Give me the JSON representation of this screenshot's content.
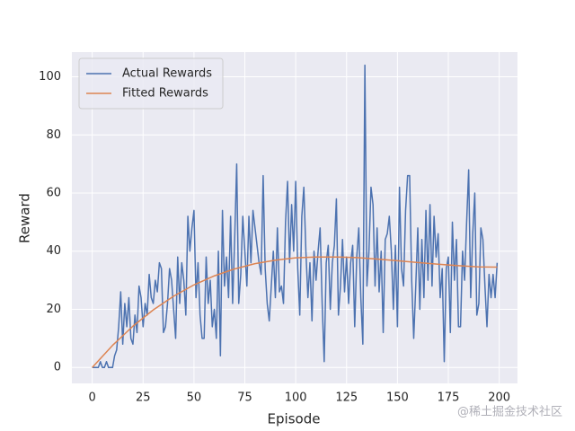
{
  "chart_data": {
    "type": "line",
    "xlabel": "Episode",
    "ylabel": "Reward",
    "xlim": [
      -10,
      209
    ],
    "ylim": [
      -5.5,
      108.5
    ],
    "xticks": [
      0,
      25,
      50,
      75,
      100,
      125,
      150,
      175,
      200
    ],
    "yticks": [
      0,
      20,
      40,
      60,
      80,
      100
    ],
    "grid": true,
    "legend": "upper left",
    "series": [
      {
        "name": "Actual Rewards",
        "color": "#4c72b0",
        "x": [
          0,
          1,
          2,
          3,
          4,
          5,
          6,
          7,
          8,
          9,
          10,
          11,
          12,
          13,
          14,
          15,
          16,
          17,
          18,
          19,
          20,
          21,
          22,
          23,
          24,
          25,
          26,
          27,
          28,
          29,
          30,
          31,
          32,
          33,
          34,
          35,
          36,
          37,
          38,
          39,
          40,
          41,
          42,
          43,
          44,
          45,
          46,
          47,
          48,
          49,
          50,
          51,
          52,
          53,
          54,
          55,
          56,
          57,
          58,
          59,
          60,
          61,
          62,
          63,
          64,
          65,
          66,
          67,
          68,
          69,
          70,
          71,
          72,
          73,
          74,
          75,
          76,
          77,
          78,
          79,
          80,
          81,
          82,
          83,
          84,
          85,
          86,
          87,
          88,
          89,
          90,
          91,
          92,
          93,
          94,
          95,
          96,
          97,
          98,
          99,
          100,
          101,
          102,
          103,
          104,
          105,
          106,
          107,
          108,
          109,
          110,
          111,
          112,
          113,
          114,
          115,
          116,
          117,
          118,
          119,
          120,
          121,
          122,
          123,
          124,
          125,
          126,
          127,
          128,
          129,
          130,
          131,
          132,
          133,
          134,
          135,
          136,
          137,
          138,
          139,
          140,
          141,
          142,
          143,
          144,
          145,
          146,
          147,
          148,
          149,
          150,
          151,
          152,
          153,
          154,
          155,
          156,
          157,
          158,
          159,
          160,
          161,
          162,
          163,
          164,
          165,
          166,
          167,
          168,
          169,
          170,
          171,
          172,
          173,
          174,
          175,
          176,
          177,
          178,
          179,
          180,
          181,
          182,
          183,
          184,
          185,
          186,
          187,
          188,
          189,
          190,
          191,
          192,
          193,
          194,
          195,
          196,
          197,
          198,
          199
        ],
        "values": [
          0,
          0,
          0,
          0,
          2,
          0,
          0,
          2,
          0,
          0,
          0,
          4,
          6,
          14,
          26,
          8,
          22,
          14,
          24,
          10,
          8,
          18,
          12,
          28,
          24,
          14,
          22,
          18,
          32,
          24,
          22,
          30,
          26,
          36,
          34,
          12,
          14,
          22,
          34,
          30,
          20,
          10,
          38,
          22,
          36,
          30,
          18,
          52,
          40,
          48,
          54,
          24,
          36,
          18,
          10,
          10,
          38,
          22,
          30,
          14,
          20,
          10,
          40,
          4,
          54,
          28,
          38,
          24,
          52,
          22,
          44,
          70,
          22,
          32,
          52,
          40,
          28,
          52,
          36,
          54,
          48,
          42,
          36,
          32,
          66,
          34,
          22,
          16,
          28,
          40,
          24,
          48,
          26,
          28,
          22,
          50,
          64,
          36,
          56,
          40,
          64,
          34,
          18,
          52,
          62,
          40,
          24,
          36,
          16,
          40,
          30,
          40,
          48,
          22,
          2,
          36,
          42,
          20,
          36,
          42,
          58,
          18,
          28,
          44,
          26,
          38,
          22,
          36,
          42,
          14,
          38,
          48,
          24,
          8,
          104,
          28,
          40,
          62,
          56,
          28,
          48,
          26,
          40,
          12,
          44,
          46,
          52,
          40,
          20,
          42,
          14,
          62,
          34,
          28,
          54,
          66,
          66,
          30,
          10,
          28,
          48,
          20,
          44,
          24,
          54,
          30,
          56,
          28,
          52,
          38,
          46,
          24,
          34,
          2,
          34,
          38,
          12,
          50,
          30,
          44,
          14,
          14,
          40,
          30,
          50,
          68,
          24,
          46,
          60,
          18,
          22,
          48,
          44,
          28,
          14,
          32,
          24,
          32,
          24,
          36
        ]
      },
      {
        "name": "Fitted Rewards",
        "color": "#dd8452",
        "x": [
          0,
          10,
          20,
          30,
          40,
          50,
          60,
          70,
          80,
          90,
          100,
          110,
          120,
          130,
          140,
          150,
          160,
          170,
          180,
          190,
          199
        ],
        "values": [
          0,
          7.6,
          14.2,
          19.8,
          24.5,
          28.4,
          31.5,
          33.9,
          35.7,
          36.9,
          37.7,
          38.0,
          38.0,
          37.8,
          37.3,
          36.7,
          36.1,
          35.5,
          35.0,
          34.6,
          34.5
        ]
      }
    ]
  },
  "watermark": "@稀土掘金技术社区"
}
